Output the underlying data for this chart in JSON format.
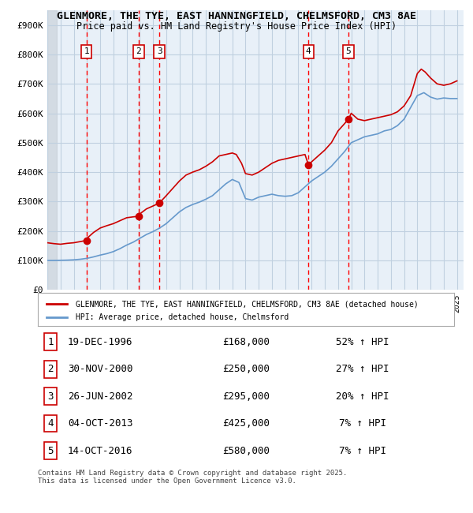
{
  "title_line1": "GLENMORE, THE TYE, EAST HANNINGFIELD, CHELMSFORD, CM3 8AE",
  "title_line2": "Price paid vs. HM Land Registry's House Price Index (HPI)",
  "xlim": [
    1994.0,
    2025.5
  ],
  "ylim": [
    0,
    950000
  ],
  "yticks": [
    0,
    100000,
    200000,
    300000,
    400000,
    500000,
    600000,
    700000,
    800000,
    900000
  ],
  "ytick_labels": [
    "£0",
    "£100K",
    "£200K",
    "£300K",
    "£400K",
    "£500K",
    "£600K",
    "£700K",
    "£800K",
    "£900K"
  ],
  "sale_dates": [
    1996.96,
    2000.92,
    2002.48,
    2013.76,
    2016.79
  ],
  "sale_prices": [
    168000,
    250000,
    295000,
    425000,
    580000
  ],
  "sale_labels": [
    "1",
    "2",
    "3",
    "4",
    "5"
  ],
  "vline_dates": [
    1996.96,
    2000.92,
    2002.48,
    2013.76,
    2016.79
  ],
  "red_line_color": "#cc0000",
  "blue_line_color": "#6699cc",
  "sale_marker_color": "#cc0000",
  "vline_color": "#ff0000",
  "label_box_color": "#ffffff",
  "label_box_edgecolor": "#cc0000",
  "grid_color": "#c0d0e0",
  "bg_color": "#e8f0f8",
  "hatch_color": "#c0c8d0",
  "legend_label_red": "GLENMORE, THE TYE, EAST HANNINGFIELD, CHELMSFORD, CM3 8AE (detached house)",
  "legend_label_blue": "HPI: Average price, detached house, Chelmsford",
  "table_rows": [
    [
      "1",
      "19-DEC-1996",
      "£168,000",
      "52% ↑ HPI"
    ],
    [
      "2",
      "30-NOV-2000",
      "£250,000",
      "27% ↑ HPI"
    ],
    [
      "3",
      "26-JUN-2002",
      "£295,000",
      "20% ↑ HPI"
    ],
    [
      "4",
      "04-OCT-2013",
      "£425,000",
      "7% ↑ HPI"
    ],
    [
      "5",
      "14-OCT-2016",
      "£580,000",
      "7% ↑ HPI"
    ]
  ],
  "footnote": "Contains HM Land Registry data © Crown copyright and database right 2025.\nThis data is licensed under the Open Government Licence v3.0."
}
